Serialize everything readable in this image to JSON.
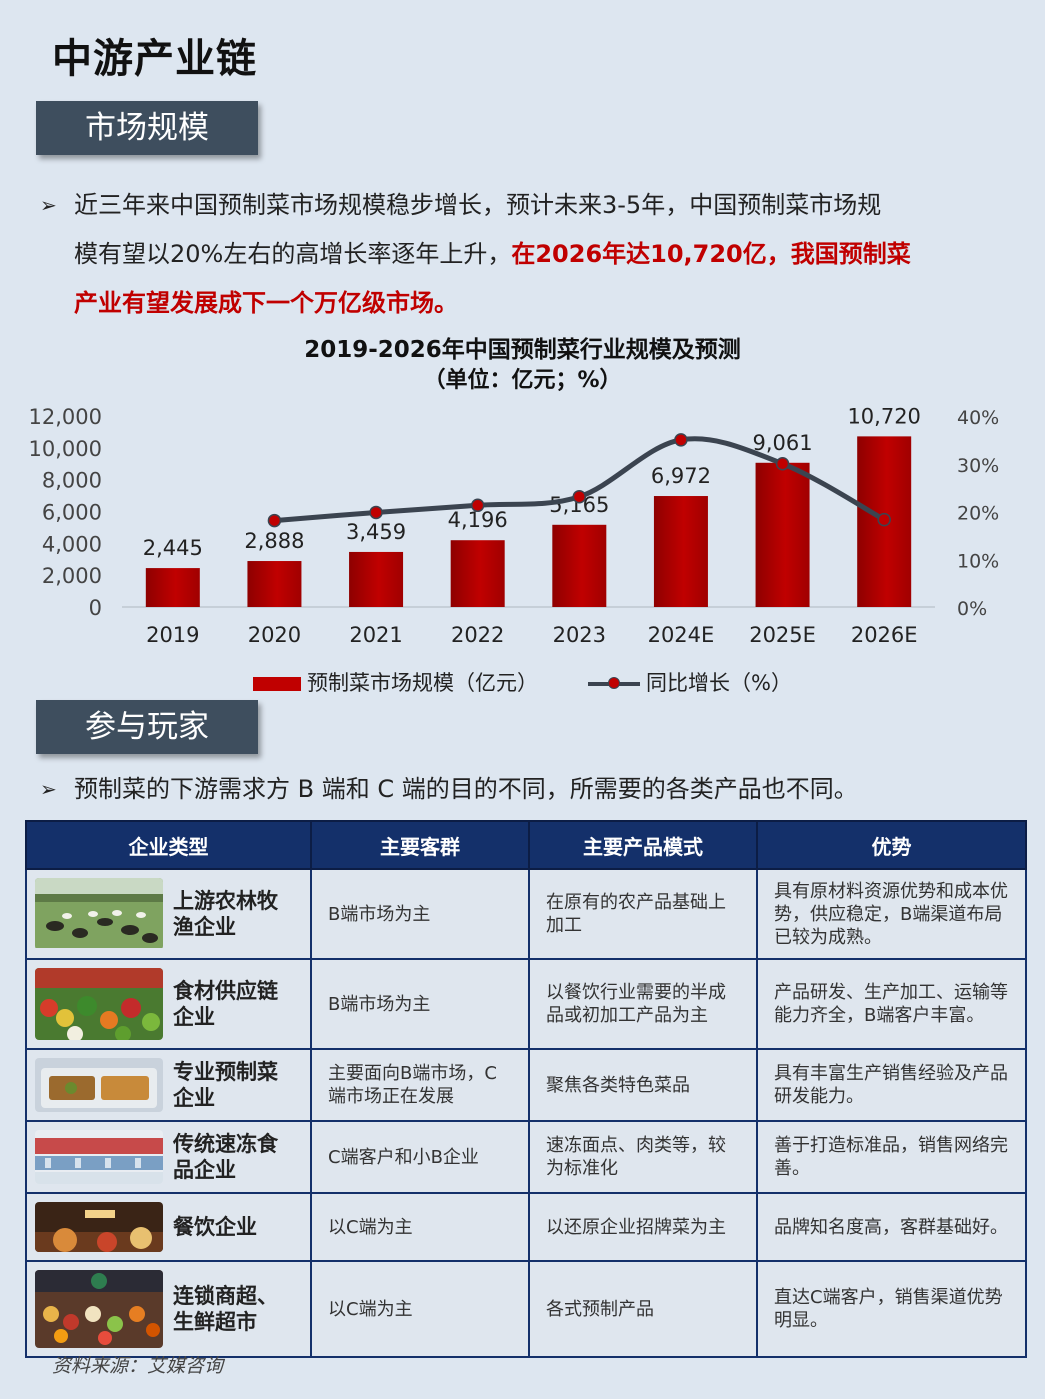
{
  "page_title": "中游产业链",
  "section1": {
    "tab": "市场规模",
    "bullet_lines": [
      "近三年来中国预制菜市场规模稳步增长，预计未来3-5年，中国预制菜市场规",
      "模有望以20%左右的高增长率逐年上升，",
      "在2026年达10,720亿，我国预制菜",
      "产业有望发展成下一个万亿级市场。"
    ]
  },
  "chart_data": {
    "type": "bar",
    "title": "2019-2026年中国预制菜行业规模及预测",
    "subtitle": "（单位：亿元；%）",
    "categories": [
      "2019",
      "2020",
      "2021",
      "2022",
      "2023",
      "2024E",
      "2025E",
      "2026E"
    ],
    "series": [
      {
        "name": "预制菜市场规模（亿元）",
        "type": "bar",
        "axis": "left",
        "values": [
          2445,
          2888,
          3459,
          4196,
          5165,
          6972,
          9061,
          10720
        ],
        "labels": [
          "2,445",
          "2,888",
          "3,459",
          "4,196",
          "5,165",
          "6,972",
          "9,061",
          "10,720"
        ]
      },
      {
        "name": "同比增长（%）",
        "type": "line",
        "axis": "right",
        "values": [
          null,
          18.1,
          19.8,
          21.3,
          23.1,
          35.0,
          30.0,
          18.3
        ]
      }
    ],
    "y_left": {
      "min": 0,
      "max": 12000,
      "ticks": [
        "12,000",
        "10,000",
        "8,000",
        "6,000",
        "4,000",
        "2,000",
        "0"
      ]
    },
    "y_right": {
      "min": 0,
      "max": 40,
      "ticks": [
        "40%",
        "30%",
        "20%",
        "10%",
        "0%"
      ]
    },
    "grid": false,
    "legend_position": "bottom",
    "colors": {
      "bar": "#c00000",
      "line": "#3b4450",
      "marker": "#c00000"
    }
  },
  "section2": {
    "tab": "参与玩家",
    "bullet": "预制菜的下游需求方 B 端和 C 端的目的不同，所需要的各类产品也不同。"
  },
  "table": {
    "headers": [
      "企业类型",
      "主要客群",
      "主要产品模式",
      "优势"
    ],
    "rows": [
      {
        "type": "上游农林牧渔企业",
        "image": "grazing-cattle-photo",
        "customers": "B端市场为主",
        "model": "在原有的农产品基础上加工",
        "advantage": "具有原材料资源优势和成本优势，供应稳定，B端渠道布局已较为成熟。"
      },
      {
        "type": "食材供应链企业",
        "image": "vegetable-market-photo",
        "customers": "B端市场为主",
        "model": "以餐饮行业需要的半成品或初加工产品为主",
        "advantage": "产品研发、生产加工、运输等能力齐全，B端客户丰富。"
      },
      {
        "type": "专业预制菜企业",
        "image": "prepared-dish-photo",
        "customers": "主要面向B端市场，C端市场正在发展",
        "model": "聚焦各类特色菜品",
        "advantage": "具有丰富生产销售经验及产品研发能力。"
      },
      {
        "type": "传统速冻食品企业",
        "image": "freezer-aisle-photo",
        "customers": "C端客户和小B企业",
        "model": "速冻面点、肉类等，较为标准化",
        "advantage": "善于打造标准品，销售网络完善。"
      },
      {
        "type": "餐饮企业",
        "image": "restaurant-photo",
        "customers": "以C端为主",
        "model": "以还原企业招牌菜为主",
        "advantage": "品牌知名度高，客群基础好。"
      },
      {
        "type": "连锁商超、生鲜超市",
        "image": "supermarket-photo",
        "customers": "以C端为主",
        "model": "各式预制产品",
        "advantage": "直达C端客户，销售渠道优势明显。"
      }
    ]
  },
  "source": "资料来源：艾媒咨询"
}
